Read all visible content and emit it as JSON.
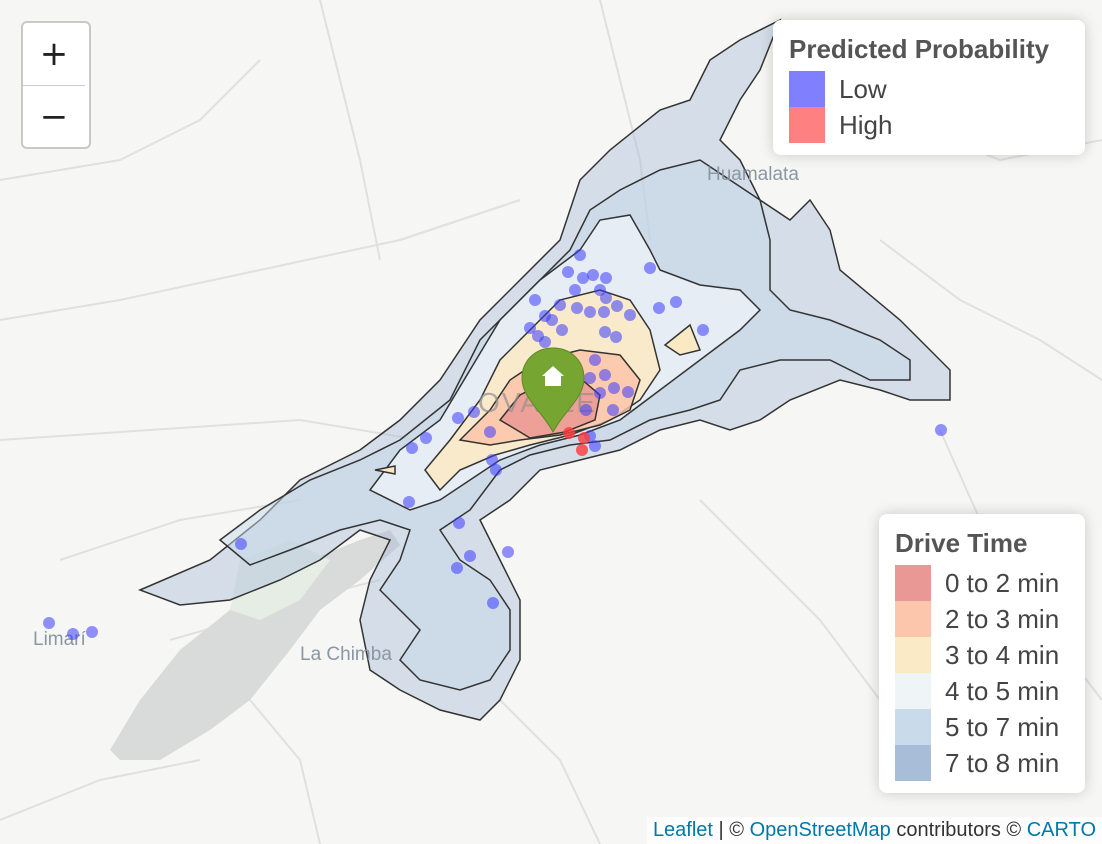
{
  "zoom": {
    "in_label": "+",
    "out_label": "−"
  },
  "places": {
    "huamalata": "Huamalata",
    "la_chimba": "La Chimba",
    "limari": "Limarí",
    "ovalle": "OVALLE"
  },
  "legend_probability": {
    "title": "Predicted Probability",
    "items": [
      {
        "label": "Low",
        "color": "#8080ff"
      },
      {
        "label": "High",
        "color": "#ff8080"
      }
    ]
  },
  "legend_drive_time": {
    "title": "Drive Time",
    "items": [
      {
        "label": "0 to 2 min",
        "color": "#e8928f"
      },
      {
        "label": "2 to 3 min",
        "color": "#fcc3a8"
      },
      {
        "label": "3 to 4 min",
        "color": "#fbe9c3"
      },
      {
        "label": "4 to 5 min",
        "color": "#eef3f7"
      },
      {
        "label": "5 to 7 min",
        "color": "#c6d9e9"
      },
      {
        "label": "7 to 8 min",
        "color": "#a3b9d6"
      }
    ]
  },
  "marker": {
    "icon": "home-icon",
    "color": "#76a532"
  },
  "attribution": {
    "leaflet": "Leaflet",
    "sep1": " | © ",
    "osm": "OpenStreetMap",
    "contrib": " contributors © ",
    "carto": "CARTO"
  }
}
